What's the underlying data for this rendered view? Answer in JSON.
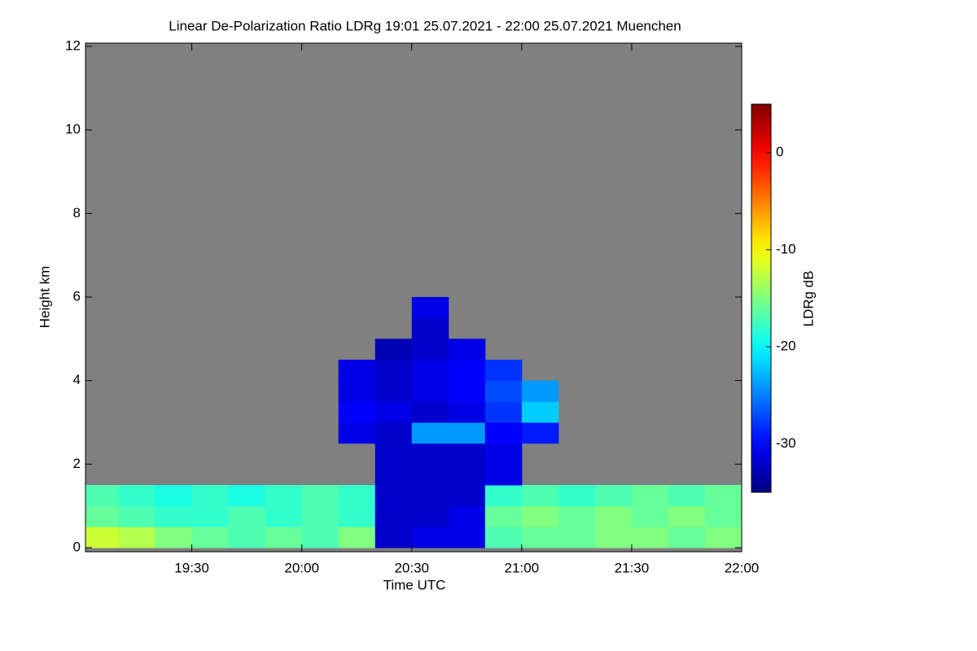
{
  "chart_data": {
    "type": "heatmap",
    "title": "Linear De-Polarization Ratio LDRg   19:01 25.07.2021 - 22:00 25.07.2021 Muenchen",
    "xlabel": "Time UTC",
    "ylabel": "Height km",
    "colorbar_label": "LDRg dB",
    "colormap": "jet",
    "background": "#808080",
    "xlim": [
      1141,
      1320
    ],
    "xticks": [
      {
        "value": 1170,
        "label": "19:30"
      },
      {
        "value": 1200,
        "label": "20:00"
      },
      {
        "value": 1230,
        "label": "20:30"
      },
      {
        "value": 1260,
        "label": "21:00"
      },
      {
        "value": 1290,
        "label": "21:30"
      },
      {
        "value": 1320,
        "label": "22:00"
      }
    ],
    "ylim": [
      0,
      12
    ],
    "yticks": [
      0,
      2,
      4,
      6,
      8,
      10,
      12
    ],
    "zlim": [
      -35,
      5
    ],
    "zticks": [
      0,
      -10,
      -20,
      -30
    ],
    "x_bins": [
      1141,
      1150,
      1160,
      1170,
      1180,
      1190,
      1200,
      1210,
      1220,
      1230,
      1240,
      1250,
      1260,
      1270,
      1280,
      1290,
      1300,
      1310,
      1320
    ],
    "y_bins": [
      0,
      0.5,
      1,
      1.5,
      2,
      2.5,
      3,
      3.5,
      4,
      4.5,
      5,
      5.5,
      6
    ],
    "z": [
      [
        -12,
        -13,
        -15,
        -16,
        -17,
        -16,
        -17,
        -15,
        -32,
        -31,
        -31,
        -17,
        -16,
        -16,
        -15,
        -15,
        -16,
        -15
      ],
      [
        -16,
        -17,
        -18,
        -18,
        -17,
        -18,
        -17,
        -18,
        -32,
        -32,
        -31,
        -16,
        -15,
        -16,
        -15,
        -16,
        -15,
        -16
      ],
      [
        -17,
        -18,
        -19,
        -18,
        -19,
        -18,
        -17,
        -18,
        -32,
        -32,
        -32,
        -18,
        -17,
        -18,
        -17,
        -16,
        -17,
        -16
      ],
      [
        null,
        null,
        null,
        null,
        null,
        null,
        null,
        null,
        -32,
        -32,
        -32,
        -31,
        null,
        null,
        null,
        null,
        null,
        null
      ],
      [
        null,
        null,
        null,
        null,
        null,
        null,
        null,
        null,
        -32,
        -32,
        -32,
        -31,
        null,
        null,
        null,
        null,
        null,
        null
      ],
      [
        null,
        null,
        null,
        null,
        null,
        null,
        null,
        -31,
        -32,
        -24,
        -24,
        -30,
        -29,
        null,
        null,
        null,
        null,
        null
      ],
      [
        null,
        null,
        null,
        null,
        null,
        null,
        null,
        -30,
        -31,
        -32,
        -31,
        -28,
        -22,
        null,
        null,
        null,
        null,
        null
      ],
      [
        null,
        null,
        null,
        null,
        null,
        null,
        null,
        -31,
        -32,
        -31,
        -30,
        -27,
        -24,
        null,
        null,
        null,
        null,
        null
      ],
      [
        null,
        null,
        null,
        null,
        null,
        null,
        null,
        -31,
        -32,
        -31,
        -30,
        -28,
        null,
        null,
        null,
        null,
        null,
        null
      ],
      [
        null,
        null,
        null,
        null,
        null,
        null,
        null,
        null,
        -33,
        -32,
        -31,
        null,
        null,
        null,
        null,
        null,
        null,
        null
      ],
      [
        null,
        null,
        null,
        null,
        null,
        null,
        null,
        null,
        null,
        -32,
        null,
        null,
        null,
        null,
        null,
        null,
        null,
        null
      ],
      [
        null,
        null,
        null,
        null,
        null,
        null,
        null,
        null,
        null,
        -31,
        null,
        null,
        null,
        null,
        null,
        null,
        null,
        null
      ]
    ]
  }
}
